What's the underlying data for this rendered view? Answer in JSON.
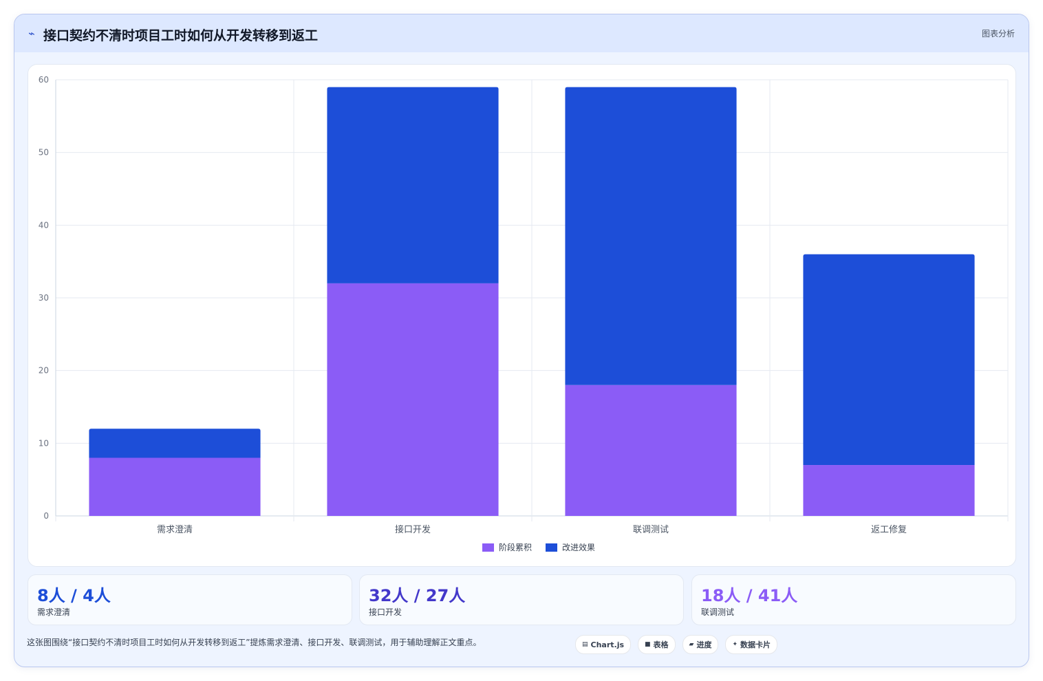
{
  "header": {
    "title_icon": "trend-icon",
    "title": "接口契约不清时项目工时如何从开发转移到返工",
    "tag": "图表分析"
  },
  "chart_data": {
    "type": "bar",
    "stacked": true,
    "categories": [
      "需求澄清",
      "接口开发",
      "联调测试",
      "返工修复"
    ],
    "series": [
      {
        "name": "阶段累积",
        "values": [
          8,
          32,
          18,
          7
        ],
        "color": "#8b5cf6"
      },
      {
        "name": "改进效果",
        "values": [
          4,
          27,
          41,
          29
        ],
        "color": "#1d4ed8"
      }
    ],
    "yticks": [
      "0",
      "10",
      "20",
      "30",
      "40",
      "50",
      "60"
    ],
    "ylim": [
      0,
      60
    ],
    "grid": true,
    "legend": "bottom"
  },
  "stats": [
    {
      "value": "8人 / 4人",
      "label": "需求澄清",
      "color": "#1d4ed8"
    },
    {
      "value": "32人 / 27人",
      "label": "接口开发",
      "color": "#4338ca"
    },
    {
      "value": "18人 / 41人",
      "label": "联调测试",
      "color": "#8b5cf6"
    }
  ],
  "caption": "这张图围绕“接口契约不清时项目工时如何从开发转移到返工”提炼需求澄清、接口开发、联调测试，用于辅助理解正文重点。",
  "chips": [
    {
      "icon": "chart-icon",
      "glyph": "▤",
      "label": "Chart.js"
    },
    {
      "icon": "table-icon",
      "glyph": "■",
      "label": "表格"
    },
    {
      "icon": "progress-icon",
      "glyph": "▰",
      "label": "进度"
    },
    {
      "icon": "sparkle-icon",
      "glyph": "✦",
      "label": "数据卡片"
    }
  ]
}
